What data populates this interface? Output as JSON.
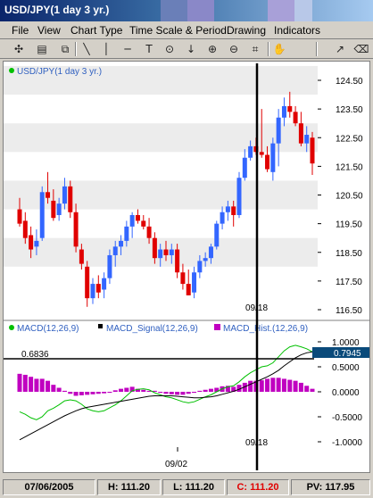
{
  "window": {
    "title": "USD/JPY(1 day  3 yr.)"
  },
  "menu": [
    "File",
    "View",
    "Chart Type",
    "Time Scale & Period",
    "Drawing",
    "Indicators"
  ],
  "toolbar_icons": [
    "crosshair-icon",
    "print-icon",
    "copy-icon",
    "diagonal-line-icon",
    "vertical-line-icon",
    "horizontal-line-icon",
    "text-icon",
    "circle-marker-icon",
    "down-arrow-icon",
    "zoom-in-icon",
    "zoom-out-icon",
    "fit-icon",
    "pan-icon",
    "trendline-icon",
    "eraser-icon"
  ],
  "price_panel": {
    "legend": "USD/JPY(1 day  3 yr.)",
    "legend_color": "#00c000",
    "cursor_date_label": "09/18",
    "price_ticks": [
      "124.50",
      "123.50",
      "122.50",
      "121.50",
      "120.50",
      "119.50",
      "118.50",
      "117.50",
      "116.50"
    ]
  },
  "macd_panel": {
    "legends": [
      {
        "label": "MACD(12,26,9)",
        "color": "#00c000"
      },
      {
        "label": "MACD_Signal(12,26,9)",
        "color": "#000000"
      },
      {
        "label": "MACD_Hist.(12,26,9)",
        "color": "#c000c0"
      }
    ],
    "level_label": "0.6836",
    "current_value": "0.7945",
    "cursor_date_label": "09/18",
    "value_ticks": [
      "1.0000",
      "0.5000",
      "0.0000",
      "-0.5000",
      "-1.0000"
    ]
  },
  "x_axis": {
    "date_label": "09/02"
  },
  "status_bar": {
    "date": "07/06/2005",
    "high": "H: 111.20",
    "low": "L: 111.20",
    "close": "C: 111.20",
    "pv": "PV: 117.95"
  },
  "colors": {
    "up_candle": "#3366ff",
    "down_candle": "#e00000",
    "macd": "#00c000",
    "signal": "#000000",
    "hist": "#c000c0"
  },
  "chart_data": {
    "type": "candlestick",
    "title": "USD/JPY(1 day  3 yr.)",
    "ylim": [
      116.0,
      125.0
    ],
    "candles": [
      {
        "o": 120.0,
        "h": 120.4,
        "l": 119.4,
        "c": 119.5
      },
      {
        "o": 119.6,
        "h": 119.9,
        "l": 118.8,
        "c": 119.0
      },
      {
        "o": 119.1,
        "h": 119.4,
        "l": 118.3,
        "c": 118.6
      },
      {
        "o": 118.7,
        "h": 119.3,
        "l": 118.4,
        "c": 118.9
      },
      {
        "o": 119.0,
        "h": 120.8,
        "l": 118.9,
        "c": 120.6
      },
      {
        "o": 120.6,
        "h": 121.3,
        "l": 120.2,
        "c": 120.4
      },
      {
        "o": 120.3,
        "h": 120.7,
        "l": 119.6,
        "c": 119.7
      },
      {
        "o": 119.8,
        "h": 120.4,
        "l": 119.6,
        "c": 120.2
      },
      {
        "o": 120.2,
        "h": 121.1,
        "l": 120.0,
        "c": 120.8
      },
      {
        "o": 120.8,
        "h": 121.0,
        "l": 119.7,
        "c": 119.9
      },
      {
        "o": 119.9,
        "h": 120.2,
        "l": 118.5,
        "c": 118.7
      },
      {
        "o": 118.6,
        "h": 118.8,
        "l": 117.9,
        "c": 118.1
      },
      {
        "o": 118.0,
        "h": 118.2,
        "l": 116.6,
        "c": 116.9
      },
      {
        "o": 116.9,
        "h": 117.6,
        "l": 116.7,
        "c": 117.4
      },
      {
        "o": 117.4,
        "h": 117.7,
        "l": 116.9,
        "c": 117.1
      },
      {
        "o": 117.2,
        "h": 117.8,
        "l": 116.9,
        "c": 117.6
      },
      {
        "o": 117.6,
        "h": 118.6,
        "l": 117.4,
        "c": 118.4
      },
      {
        "o": 118.4,
        "h": 118.9,
        "l": 118.0,
        "c": 118.7
      },
      {
        "o": 118.7,
        "h": 119.1,
        "l": 118.4,
        "c": 118.9
      },
      {
        "o": 118.9,
        "h": 119.6,
        "l": 118.7,
        "c": 119.4
      },
      {
        "o": 119.4,
        "h": 119.9,
        "l": 119.0,
        "c": 119.8
      },
      {
        "o": 119.8,
        "h": 120.0,
        "l": 119.5,
        "c": 119.6
      },
      {
        "o": 119.6,
        "h": 119.8,
        "l": 119.3,
        "c": 119.4
      },
      {
        "o": 119.4,
        "h": 119.7,
        "l": 118.8,
        "c": 119.0
      },
      {
        "o": 119.0,
        "h": 119.2,
        "l": 118.1,
        "c": 118.3
      },
      {
        "o": 118.3,
        "h": 118.8,
        "l": 118.0,
        "c": 118.6
      },
      {
        "o": 118.6,
        "h": 118.9,
        "l": 118.2,
        "c": 118.4
      },
      {
        "o": 118.4,
        "h": 118.8,
        "l": 118.1,
        "c": 118.6
      },
      {
        "o": 118.6,
        "h": 118.8,
        "l": 117.6,
        "c": 117.8
      },
      {
        "o": 117.8,
        "h": 118.1,
        "l": 117.2,
        "c": 117.4
      },
      {
        "o": 117.4,
        "h": 117.9,
        "l": 117.0,
        "c": 117.0
      },
      {
        "o": 117.1,
        "h": 118.0,
        "l": 116.9,
        "c": 117.8
      },
      {
        "o": 117.8,
        "h": 118.4,
        "l": 117.6,
        "c": 118.2
      },
      {
        "o": 118.2,
        "h": 118.5,
        "l": 118.0,
        "c": 118.3
      },
      {
        "o": 118.3,
        "h": 118.8,
        "l": 118.1,
        "c": 118.7
      },
      {
        "o": 118.7,
        "h": 119.6,
        "l": 118.6,
        "c": 119.5
      },
      {
        "o": 119.5,
        "h": 120.1,
        "l": 119.3,
        "c": 119.9
      },
      {
        "o": 119.9,
        "h": 120.3,
        "l": 119.6,
        "c": 120.1
      },
      {
        "o": 120.1,
        "h": 120.3,
        "l": 119.4,
        "c": 119.8
      },
      {
        "o": 119.8,
        "h": 121.3,
        "l": 119.7,
        "c": 121.1
      },
      {
        "o": 121.1,
        "h": 122.1,
        "l": 121.0,
        "c": 121.8
      },
      {
        "o": 121.8,
        "h": 122.4,
        "l": 121.7,
        "c": 122.2
      },
      {
        "o": 122.2,
        "h": 122.5,
        "l": 121.9,
        "c": 122.0
      },
      {
        "o": 122.0,
        "h": 123.5,
        "l": 121.8,
        "c": 121.9
      },
      {
        "o": 121.9,
        "h": 122.2,
        "l": 121.3,
        "c": 121.4
      },
      {
        "o": 121.3,
        "h": 122.5,
        "l": 121.0,
        "c": 122.3
      },
      {
        "o": 122.3,
        "h": 123.5,
        "l": 121.5,
        "c": 123.2
      },
      {
        "o": 123.2,
        "h": 123.9,
        "l": 122.9,
        "c": 123.6
      },
      {
        "o": 123.6,
        "h": 124.1,
        "l": 123.2,
        "c": 123.4
      },
      {
        "o": 123.4,
        "h": 123.6,
        "l": 122.9,
        "c": 123.0
      },
      {
        "o": 123.0,
        "h": 123.4,
        "l": 122.2,
        "c": 122.3
      },
      {
        "o": 122.3,
        "h": 122.9,
        "l": 122.0,
        "c": 122.6
      },
      {
        "o": 122.5,
        "h": 122.7,
        "l": 121.2,
        "c": 121.6
      }
    ],
    "macd": [
      -0.4,
      -0.45,
      -0.52,
      -0.56,
      -0.5,
      -0.38,
      -0.33,
      -0.26,
      -0.18,
      -0.16,
      -0.18,
      -0.25,
      -0.34,
      -0.38,
      -0.4,
      -0.38,
      -0.32,
      -0.26,
      -0.18,
      -0.08,
      0.02,
      0.05,
      0.06,
      0.04,
      -0.02,
      -0.06,
      -0.1,
      -0.12,
      -0.16,
      -0.2,
      -0.22,
      -0.2,
      -0.15,
      -0.1,
      -0.06,
      0.0,
      0.06,
      0.1,
      0.12,
      0.2,
      0.3,
      0.38,
      0.44,
      0.5,
      0.52,
      0.58,
      0.7,
      0.82,
      0.9,
      0.93,
      0.9,
      0.86,
      0.8
    ],
    "signal": [
      -0.96,
      -0.9,
      -0.84,
      -0.78,
      -0.72,
      -0.66,
      -0.6,
      -0.54,
      -0.48,
      -0.43,
      -0.38,
      -0.34,
      -0.31,
      -0.29,
      -0.27,
      -0.25,
      -0.23,
      -0.21,
      -0.19,
      -0.17,
      -0.15,
      -0.13,
      -0.11,
      -0.09,
      -0.08,
      -0.08,
      -0.08,
      -0.08,
      -0.09,
      -0.1,
      -0.11,
      -0.12,
      -0.12,
      -0.11,
      -0.1,
      -0.08,
      -0.05,
      -0.02,
      0.01,
      0.05,
      0.1,
      0.15,
      0.2,
      0.25,
      0.3,
      0.36,
      0.43,
      0.52,
      0.6,
      0.68,
      0.74,
      0.78,
      0.8
    ],
    "hist": [
      0.36,
      0.34,
      0.3,
      0.26,
      0.26,
      0.22,
      0.14,
      0.08,
      0.02,
      -0.04,
      -0.08,
      -0.07,
      -0.06,
      -0.05,
      -0.04,
      -0.03,
      -0.02,
      0.03,
      0.06,
      0.08,
      0.1,
      0.06,
      0.04,
      0.02,
      0.02,
      -0.02,
      -0.04,
      -0.05,
      -0.06,
      -0.06,
      -0.04,
      -0.02,
      0.02,
      0.04,
      0.06,
      0.08,
      0.11,
      0.12,
      0.1,
      0.14,
      0.18,
      0.22,
      0.22,
      0.23,
      0.26,
      0.28,
      0.28,
      0.26,
      0.24,
      0.22,
      0.18,
      0.12,
      0.06
    ],
    "macd_ylim": [
      -1.0,
      1.0
    ]
  }
}
